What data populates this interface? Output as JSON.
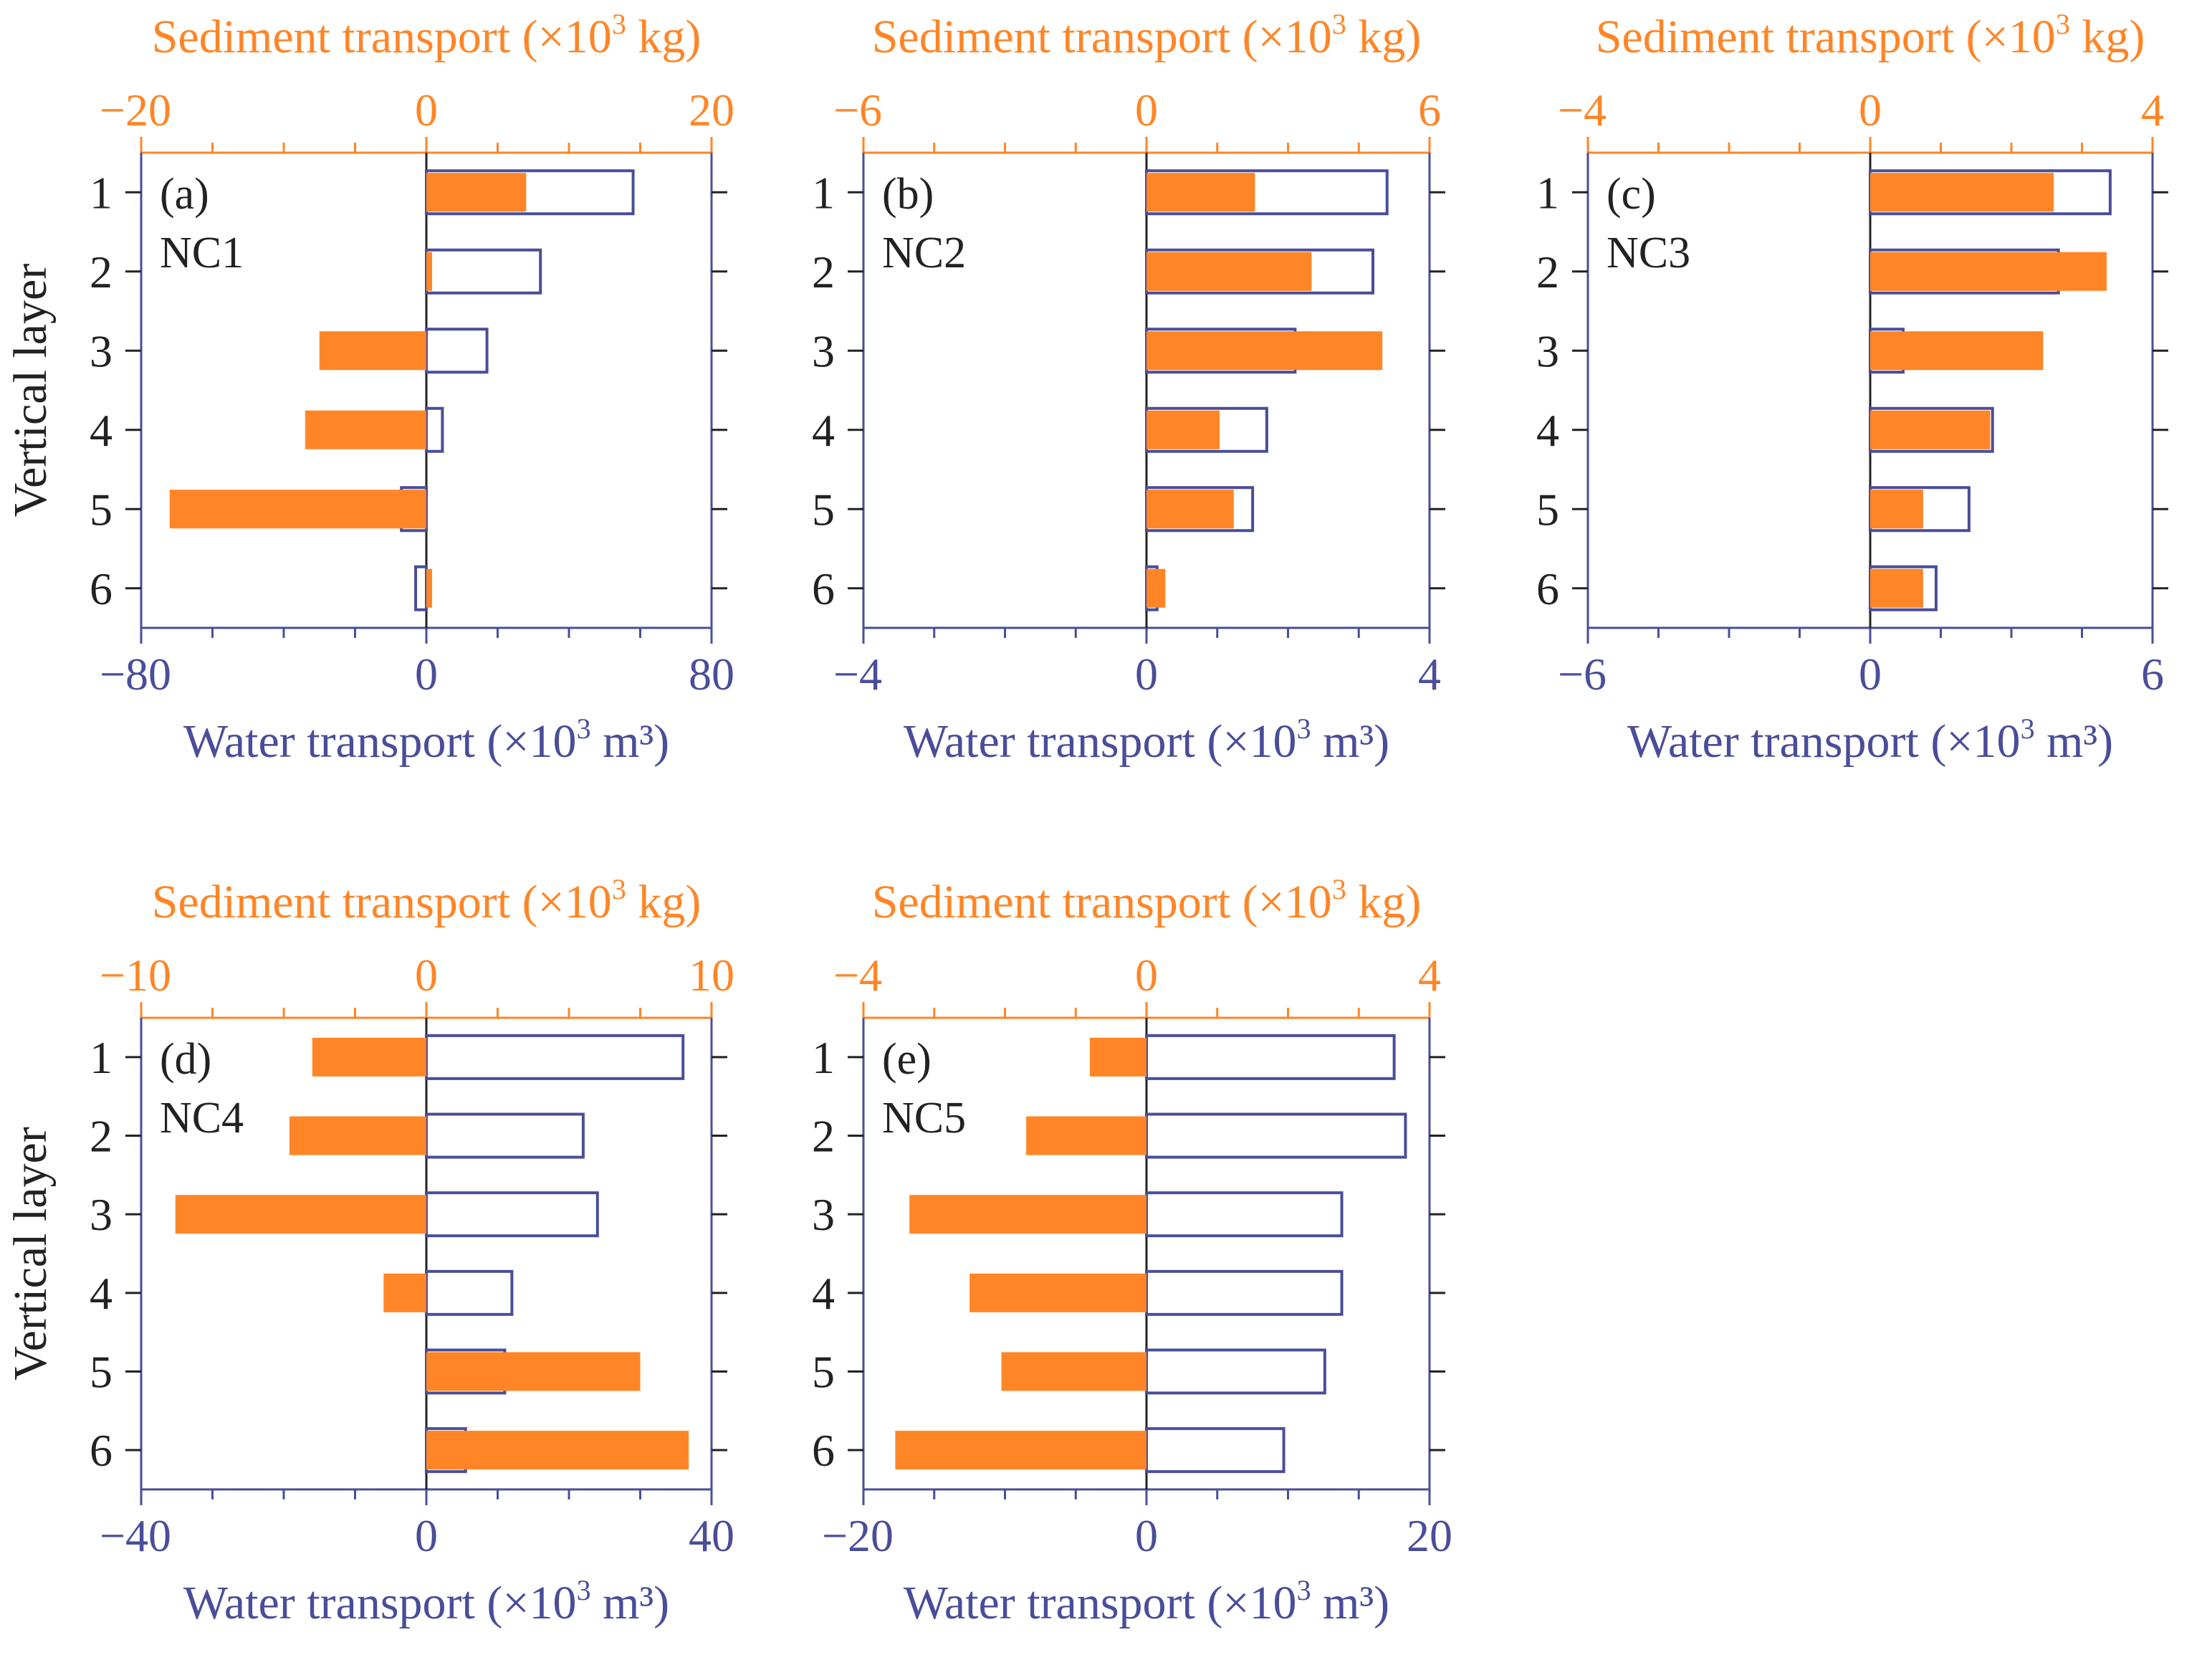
{
  "colors": {
    "sediment": "#ff8526",
    "water": "#4a4d99",
    "axis_dark": "#222222",
    "background": "#ffffff"
  },
  "chart_data": [
    {
      "type": "bar",
      "panel_label": "(a)",
      "station": "NC1",
      "ylabel": "Vertical layer",
      "layers": [
        "1",
        "2",
        "3",
        "4",
        "5",
        "6"
      ],
      "top_axis": {
        "label": "Sediment transport (×10³ kg)",
        "range": [
          -20,
          20
        ],
        "tick_labels": [
          "−20",
          "0",
          "20"
        ]
      },
      "bottom_axis": {
        "label": "Water transport (×10³ m³)",
        "range": [
          -80,
          80
        ],
        "tick_labels": [
          "−80",
          "0",
          "80"
        ]
      },
      "series": [
        {
          "name": "Sediment transport",
          "unit": "×10³ kg",
          "values": [
            7,
            0.4,
            -7.5,
            -8.5,
            -18,
            0.4
          ]
        },
        {
          "name": "Water transport",
          "unit": "×10³ m³",
          "values": [
            58,
            32,
            17,
            4.5,
            -7,
            -3
          ]
        }
      ]
    },
    {
      "type": "bar",
      "panel_label": "(b)",
      "station": "NC2",
      "ylabel": "",
      "layers": [
        "1",
        "2",
        "3",
        "4",
        "5",
        "6"
      ],
      "top_axis": {
        "label": "Sediment transport (×10³ kg)",
        "range": [
          -6,
          6
        ],
        "tick_labels": [
          "−6",
          "0",
          "6"
        ]
      },
      "bottom_axis": {
        "label": "Water transport (×10³ m³)",
        "range": [
          -4,
          4
        ],
        "tick_labels": [
          "−4",
          "0",
          "4"
        ]
      },
      "series": [
        {
          "name": "Sediment transport",
          "unit": "×10³ kg",
          "values": [
            2.3,
            3.5,
            5.0,
            1.55,
            1.85,
            0.4
          ]
        },
        {
          "name": "Water transport",
          "unit": "×10³ m³",
          "values": [
            3.4,
            3.2,
            2.1,
            1.7,
            1.5,
            0.15
          ]
        }
      ]
    },
    {
      "type": "bar",
      "panel_label": "(c)",
      "station": "NC3",
      "ylabel": "",
      "layers": [
        "1",
        "2",
        "3",
        "4",
        "5",
        "6"
      ],
      "top_axis": {
        "label": "Sediment transport (×10³ kg)",
        "range": [
          -4,
          4
        ],
        "tick_labels": [
          "−4",
          "0",
          "4"
        ]
      },
      "bottom_axis": {
        "label": "Water transport (×10³ m³)",
        "range": [
          -6,
          6
        ],
        "tick_labels": [
          "−6",
          "0",
          "6"
        ]
      },
      "series": [
        {
          "name": "Sediment transport",
          "unit": "×10³ kg",
          "values": [
            2.6,
            3.35,
            2.45,
            1.7,
            0.75,
            0.75
          ]
        },
        {
          "name": "Water transport",
          "unit": "×10³ m³",
          "values": [
            5.1,
            4.0,
            0.7,
            2.6,
            2.1,
            1.4
          ]
        }
      ]
    },
    {
      "type": "bar",
      "panel_label": "(d)",
      "station": "NC4",
      "ylabel": "Vertical layer",
      "layers": [
        "1",
        "2",
        "3",
        "4",
        "5",
        "6"
      ],
      "top_axis": {
        "label": "Sediment transport (×10³ kg)",
        "range": [
          -10,
          10
        ],
        "tick_labels": [
          "−10",
          "0",
          "10"
        ]
      },
      "bottom_axis": {
        "label": "Water transport (×10³ m³)",
        "range": [
          -40,
          40
        ],
        "tick_labels": [
          "−40",
          "0",
          "40"
        ]
      },
      "series": [
        {
          "name": "Sediment transport",
          "unit": "×10³ kg",
          "values": [
            -4,
            -4.8,
            -8.8,
            -1.5,
            7.5,
            9.2
          ]
        },
        {
          "name": "Water transport",
          "unit": "×10³ m³",
          "values": [
            36,
            22,
            24,
            12,
            11,
            5.5
          ]
        }
      ]
    },
    {
      "type": "bar",
      "panel_label": "(e)",
      "station": "NC5",
      "ylabel": "",
      "layers": [
        "1",
        "2",
        "3",
        "4",
        "5",
        "6"
      ],
      "top_axis": {
        "label": "Sediment transport (×10³ kg)",
        "range": [
          -4,
          4
        ],
        "tick_labels": [
          "−4",
          "0",
          "4"
        ]
      },
      "bottom_axis": {
        "label": "Water transport (×10³ m³)",
        "range": [
          -20,
          20
        ],
        "tick_labels": [
          "−20",
          "0",
          "20"
        ]
      },
      "series": [
        {
          "name": "Sediment transport",
          "unit": "×10³ kg",
          "values": [
            -0.8,
            -1.7,
            -3.35,
            -2.5,
            -2.05,
            -3.55
          ]
        },
        {
          "name": "Water transport",
          "unit": "×10³ m³",
          "values": [
            17.5,
            18.3,
            13.8,
            13.8,
            12.6,
            9.7
          ]
        }
      ]
    }
  ]
}
